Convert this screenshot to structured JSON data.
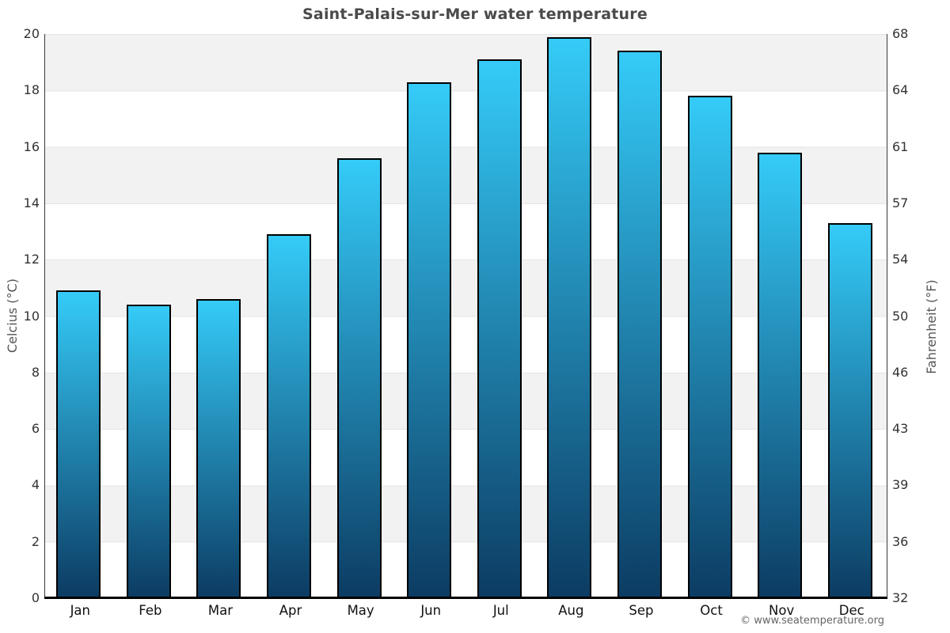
{
  "page": {
    "title": "Saint-Palais-sur-Mer water temperature",
    "credit": "© www.seatemperature.org"
  },
  "axes": {
    "left": {
      "label": "Celcius (°C)",
      "ticks": [
        "20",
        "18",
        "16",
        "14",
        "12",
        "10",
        "8",
        "6",
        "4",
        "2",
        "0"
      ]
    },
    "right": {
      "label": "Fahrenheit (°F)",
      "ticks": [
        "68",
        "64",
        "61",
        "57",
        "54",
        "50",
        "46",
        "43",
        "39",
        "36",
        "32"
      ]
    }
  },
  "chart_data": {
    "type": "bar",
    "title": "Saint-Palais-sur-Mer water temperature",
    "categories": [
      "Jan",
      "Feb",
      "Mar",
      "Apr",
      "May",
      "Jun",
      "Jul",
      "Aug",
      "Sep",
      "Oct",
      "Nov",
      "Dec"
    ],
    "values": [
      10.9,
      10.4,
      10.6,
      12.9,
      15.6,
      18.3,
      19.1,
      19.9,
      19.4,
      17.8,
      15.8,
      13.3
    ],
    "unit": "°C",
    "xlabel": "",
    "ylabel": "Celcius (°C)",
    "y2label": "Fahrenheit (°F)",
    "ylim": [
      0,
      20
    ],
    "y2lim": [
      32,
      68
    ],
    "y_ticks": [
      20,
      18,
      16,
      14,
      12,
      10,
      8,
      6,
      4,
      2,
      0
    ],
    "y2_ticks": [
      68,
      64,
      61,
      57,
      54,
      50,
      46,
      43,
      39,
      36,
      32
    ],
    "grid": true,
    "bands": true,
    "legend": "none",
    "colors": {
      "bar_gradient_top": "#35cbf8",
      "bar_gradient_bottom": "#0c3c63",
      "bar_border": "#000000",
      "band": "#f2f2f2",
      "gridline": "#e4e4e4",
      "title_text": "#4a4a4a",
      "tick_text": "#333333",
      "axis_title_text": "#555555",
      "credit_text": "#666666"
    }
  }
}
